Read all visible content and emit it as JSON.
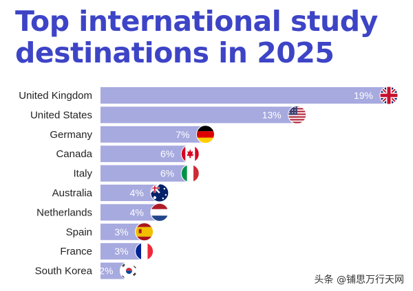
{
  "title_line1": "Top international study",
  "title_line2": "destinations in 2025",
  "watermark": "头条 @铺思万行天网",
  "colors": {
    "title": "#3d44c6",
    "bar": "#a7aadf",
    "value_text": "#ffffff"
  },
  "chart_data": {
    "type": "bar",
    "orientation": "horizontal",
    "categories": [
      "United Kingdom",
      "United States",
      "Germany",
      "Canada",
      "Italy",
      "Australia",
      "Netherlands",
      "Spain",
      "France",
      "South Korea"
    ],
    "values": [
      19,
      13,
      7,
      6,
      6,
      4,
      4,
      3,
      3,
      2
    ],
    "value_labels": [
      "19%",
      "13%",
      "7%",
      "6%",
      "6%",
      "4%",
      "4%",
      "3%",
      "3%",
      "2%"
    ],
    "flags": [
      "uk-flag-icon",
      "us-flag-icon",
      "germany-flag-icon",
      "canada-flag-icon",
      "italy-flag-icon",
      "australia-flag-icon",
      "netherlands-flag-icon",
      "spain-flag-icon",
      "france-flag-icon",
      "south-korea-flag-icon"
    ],
    "title": "Top international study destinations in 2025",
    "xlabel": "",
    "ylabel": "",
    "xlim": [
      0,
      19
    ],
    "grid": false,
    "legend": "none"
  }
}
